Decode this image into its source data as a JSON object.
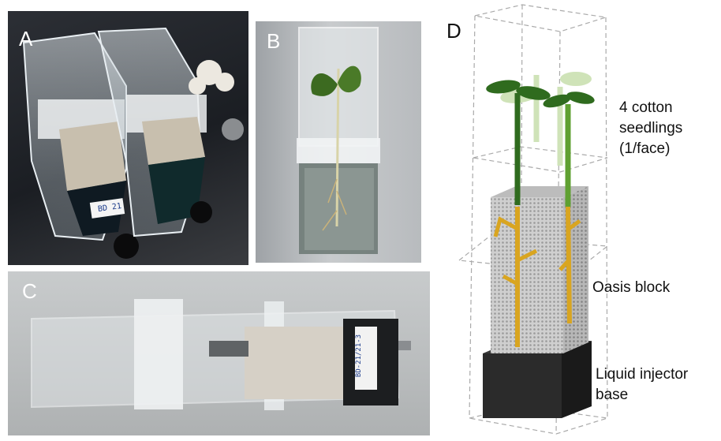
{
  "panels": {
    "a": {
      "letter": "A",
      "box_label": "BD 21"
    },
    "b": {
      "letter": "B"
    },
    "c": {
      "letter": "C",
      "box_label": "BD-21/21-3"
    },
    "d": {
      "letter": "D"
    }
  },
  "diagram_labels": {
    "seedlings": [
      "4 cotton",
      "seedlings",
      "(1/face)"
    ],
    "block": "Oasis block",
    "base": [
      "Liquid injector",
      "base"
    ]
  },
  "colors": {
    "stem_dark": "#2f6b1e",
    "stem_light": "#7fbf3f",
    "root": "#d9a520",
    "base": "#2b2b2b",
    "block": "#c9c9c9"
  }
}
